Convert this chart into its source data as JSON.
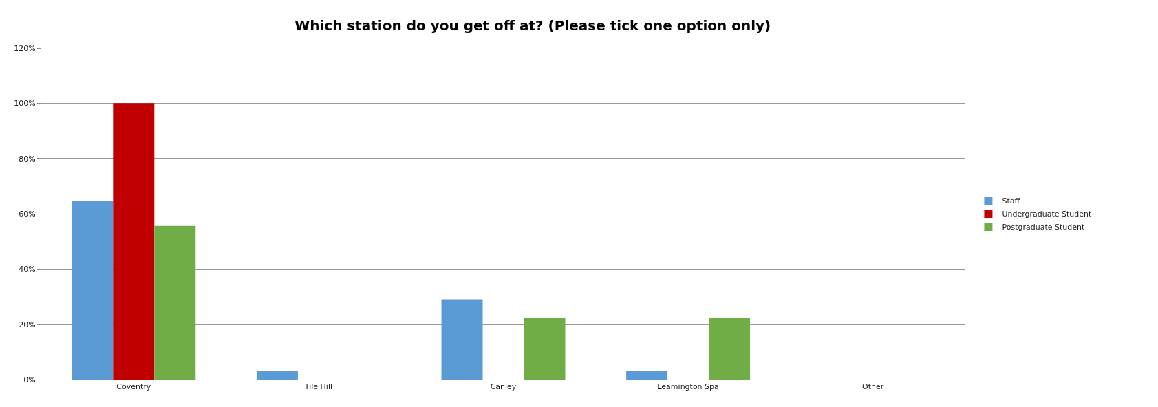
{
  "chart_data": {
    "type": "bar",
    "title": "Which station do you get off at? (Please tick one option only)",
    "categories": [
      "Coventry",
      "Tile Hill",
      "Canley",
      "Leamington Spa",
      "Other"
    ],
    "series": [
      {
        "name": "Staff",
        "color": "#5b9bd5",
        "values": [
          64.5,
          3.2,
          29.0,
          3.2,
          0
        ]
      },
      {
        "name": "Undergraduate Student",
        "color": "#c00000",
        "values": [
          100,
          0,
          0,
          0,
          0
        ]
      },
      {
        "name": "Postgraduate Student",
        "color": "#70ad47",
        "values": [
          55.6,
          0,
          22.2,
          22.2,
          0
        ]
      }
    ],
    "ylim": [
      0,
      120
    ],
    "yticks": [
      {
        "value": 0,
        "label": "0%"
      },
      {
        "value": 20,
        "label": "20%"
      },
      {
        "value": 40,
        "label": "40%"
      },
      {
        "value": 60,
        "label": "60%"
      },
      {
        "value": 80,
        "label": "80%"
      },
      {
        "value": 100,
        "label": "100%"
      },
      {
        "value": 120,
        "label": "120%"
      }
    ],
    "grid": "y",
    "legend": "right"
  }
}
